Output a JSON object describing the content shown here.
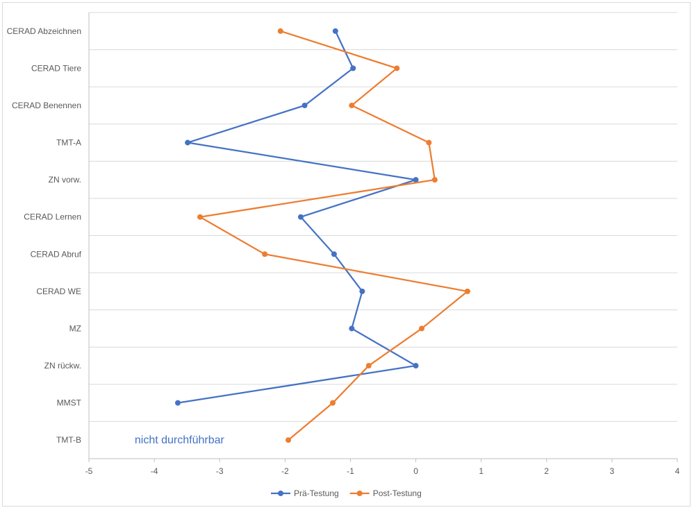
{
  "chart_data": {
    "type": "line",
    "orientation": "horizontal-profile",
    "title": "",
    "xlabel": "",
    "ylabel": "",
    "xlim": [
      -5,
      4
    ],
    "xticks": [
      -5,
      -4,
      -3,
      -2,
      -1,
      0,
      1,
      2,
      3,
      4
    ],
    "grid": "horizontal",
    "legend": "bottom",
    "categories": [
      "CERAD Abzeichnen",
      "CERAD Tiere",
      "CERAD Benennen",
      "TMT-A",
      "ZN vorw.",
      "CERAD Lernen",
      "CERAD Abruf",
      "CERAD WE",
      "MZ",
      "ZN rückw.",
      "MMST",
      "TMT-B"
    ],
    "series": [
      {
        "name": "Prä-Testung",
        "color": "#4472c4",
        "values": [
          -1.23,
          -0.96,
          -1.7,
          -3.49,
          0.0,
          -1.76,
          -1.25,
          -0.82,
          -0.98,
          0.0,
          -3.64,
          null
        ]
      },
      {
        "name": "Post-Testung",
        "color": "#ed7d31",
        "values": [
          -2.07,
          -0.29,
          -0.98,
          0.2,
          0.29,
          -3.3,
          -2.31,
          0.79,
          0.09,
          -0.72,
          -1.27,
          -1.95
        ]
      }
    ],
    "annotations": [
      {
        "text": "nicht durchführbar",
        "category": "TMT-B",
        "x": -4.3
      }
    ]
  }
}
